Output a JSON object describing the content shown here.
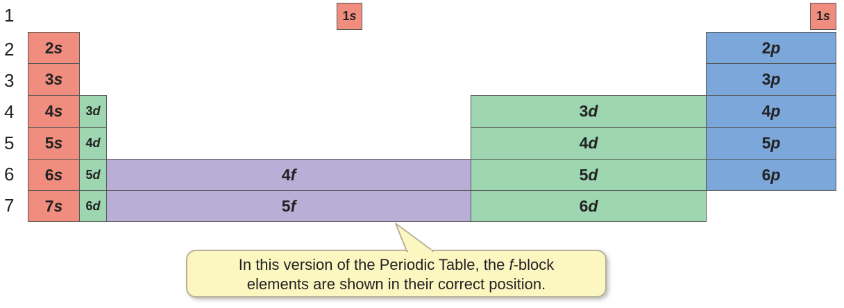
{
  "periods": [
    "1",
    "2",
    "3",
    "4",
    "5",
    "6",
    "7"
  ],
  "s_block": [
    {
      "n": "1",
      "l": "s"
    },
    {
      "n": "2",
      "l": "s"
    },
    {
      "n": "3",
      "l": "s"
    },
    {
      "n": "4",
      "l": "s"
    },
    {
      "n": "5",
      "l": "s"
    },
    {
      "n": "6",
      "l": "s"
    },
    {
      "n": "7",
      "l": "s"
    }
  ],
  "he": {
    "n": "1",
    "l": "s"
  },
  "d_narrow": [
    {
      "n": "3",
      "l": "d"
    },
    {
      "n": "4",
      "l": "d"
    },
    {
      "n": "5",
      "l": "d"
    },
    {
      "n": "6",
      "l": "d"
    }
  ],
  "f_block": [
    {
      "n": "4",
      "l": "f"
    },
    {
      "n": "5",
      "l": "f"
    }
  ],
  "d_block": [
    {
      "n": "3",
      "l": "d"
    },
    {
      "n": "4",
      "l": "d"
    },
    {
      "n": "5",
      "l": "d"
    },
    {
      "n": "6",
      "l": "d"
    }
  ],
  "p_block": [
    {
      "n": "2",
      "l": "p"
    },
    {
      "n": "3",
      "l": "p"
    },
    {
      "n": "4",
      "l": "p"
    },
    {
      "n": "5",
      "l": "p"
    },
    {
      "n": "6",
      "l": "p"
    }
  ],
  "callout": {
    "line1_pre": "In this version of the Periodic Table, the ",
    "line1_em": "f",
    "line1_post": "-block",
    "line2": "elements are shown in their correct position."
  },
  "colors": {
    "s": "#f08d7e",
    "p": "#7ba7da",
    "d": "#9dd6b0",
    "f": "#b8aed6",
    "callout": "#fcf6c1"
  }
}
